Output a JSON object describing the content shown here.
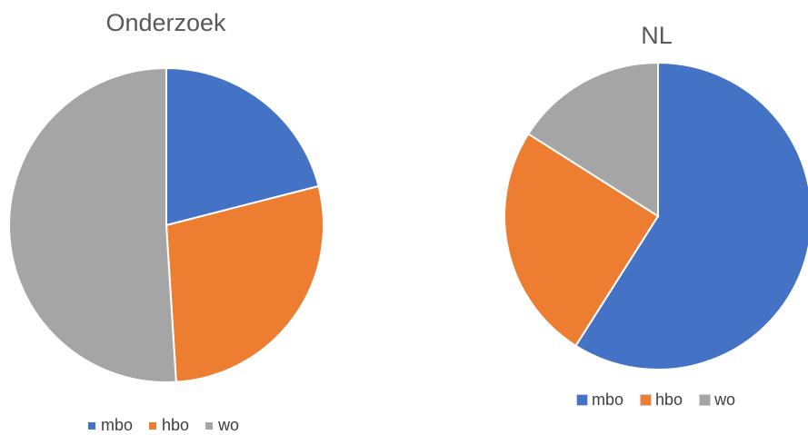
{
  "chart_data": [
    {
      "type": "pie",
      "title": "Onderzoek",
      "categories": [
        "mbo",
        "hbo",
        "wo"
      ],
      "values": [
        21,
        28,
        51
      ],
      "colors": [
        "#4472C4",
        "#ED7D31",
        "#A5A5A5"
      ],
      "legend_position": "bottom"
    },
    {
      "type": "pie",
      "title": "NL",
      "categories": [
        "mbo",
        "hbo",
        "wo"
      ],
      "values": [
        59,
        25,
        16
      ],
      "colors": [
        "#4472C4",
        "#ED7D31",
        "#A5A5A5"
      ],
      "legend_position": "bottom"
    }
  ]
}
